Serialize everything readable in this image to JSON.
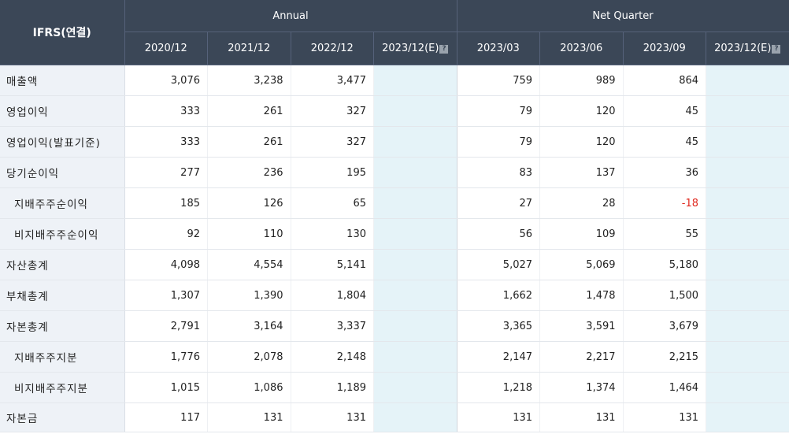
{
  "header": {
    "corner": "IFRS(연결)",
    "groups": {
      "annual": "Annual",
      "quarter": "Net Quarter"
    },
    "annual_periods": [
      "2020/12",
      "2021/12",
      "2022/12",
      "2023/12(E)"
    ],
    "quarter_periods": [
      "2023/03",
      "2023/06",
      "2023/09",
      "2023/12(E)"
    ],
    "estimate_badge": "?"
  },
  "rows": [
    {
      "label": "매출액",
      "annual": [
        "3,076",
        "3,238",
        "3,477",
        ""
      ],
      "quarter": [
        "759",
        "989",
        "864",
        ""
      ]
    },
    {
      "label": "영업이익",
      "annual": [
        "333",
        "261",
        "327",
        ""
      ],
      "quarter": [
        "79",
        "120",
        "45",
        ""
      ]
    },
    {
      "label": "영업이익(발표기준)",
      "annual": [
        "333",
        "261",
        "327",
        ""
      ],
      "quarter": [
        "79",
        "120",
        "45",
        ""
      ]
    },
    {
      "label": "당기순이익",
      "annual": [
        "277",
        "236",
        "195",
        ""
      ],
      "quarter": [
        "83",
        "137",
        "36",
        ""
      ]
    },
    {
      "label": "지배주주순이익",
      "annual": [
        "185",
        "126",
        "65",
        ""
      ],
      "quarter": [
        "27",
        "28",
        "-18",
        ""
      ]
    },
    {
      "label": "비지배주주순이익",
      "annual": [
        "92",
        "110",
        "130",
        ""
      ],
      "quarter": [
        "56",
        "109",
        "55",
        ""
      ]
    },
    {
      "label": "자산총계",
      "annual": [
        "4,098",
        "4,554",
        "5,141",
        ""
      ],
      "quarter": [
        "5,027",
        "5,069",
        "5,180",
        ""
      ]
    },
    {
      "label": "부채총계",
      "annual": [
        "1,307",
        "1,390",
        "1,804",
        ""
      ],
      "quarter": [
        "1,662",
        "1,478",
        "1,500",
        ""
      ]
    },
    {
      "label": "자본총계",
      "annual": [
        "2,791",
        "3,164",
        "3,337",
        ""
      ],
      "quarter": [
        "3,365",
        "3,591",
        "3,679",
        ""
      ]
    },
    {
      "label": "지배주주지분",
      "annual": [
        "1,776",
        "2,078",
        "2,148",
        ""
      ],
      "quarter": [
        "2,147",
        "2,217",
        "2,215",
        ""
      ]
    },
    {
      "label": "비지배주주지분",
      "annual": [
        "1,015",
        "1,086",
        "1,189",
        ""
      ],
      "quarter": [
        "1,218",
        "1,374",
        "1,464",
        ""
      ]
    },
    {
      "label": "자본금",
      "annual": [
        "117",
        "131",
        "131",
        ""
      ],
      "quarter": [
        "131",
        "131",
        "131",
        ""
      ]
    }
  ],
  "colors": {
    "header_bg": "#3b4757",
    "label_bg": "#eef2f7",
    "estimate_bg": "#e5f3f8",
    "negative": "#e0281e"
  }
}
